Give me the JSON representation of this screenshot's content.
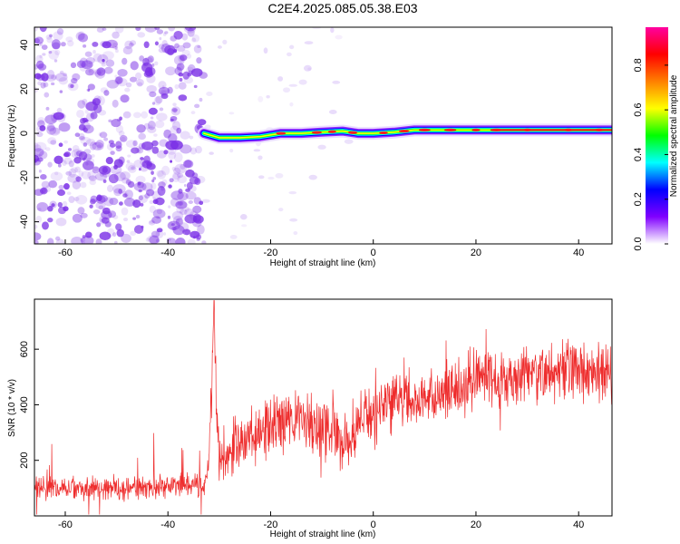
{
  "title": "C2E4.2025.085.05.38.E03",
  "colors": {
    "line": "#ee2d2d",
    "frame": "#000000",
    "spectrogram_noise": "#7a2fe6",
    "colormap": [
      "#ffffff",
      "#8000ff",
      "#0000ff",
      "#00ffff",
      "#00ff00",
      "#ffff00",
      "#ff8000",
      "#ff0000",
      "#ff00a0"
    ]
  },
  "chart_data": [
    {
      "type": "heatmap",
      "xlabel": "Height of straight line (km)",
      "ylabel": "Frequency (Hz)",
      "xlim": [
        -66,
        46.5
      ],
      "ylim": [
        -50,
        48
      ],
      "xticks": [
        -60,
        -40,
        -20,
        0,
        20,
        40
      ],
      "xtick_labels": [
        "-60",
        "-40",
        "-20",
        "0",
        "20",
        "40"
      ],
      "yticks": [
        -40,
        -20,
        0,
        20,
        40
      ],
      "ytick_labels": [
        "-40",
        "-20",
        "0",
        "20",
        "40"
      ],
      "colorbar": {
        "label": "Normalized spectral amplitude",
        "range": [
          0,
          0.97
        ],
        "ticks": [
          0.0,
          0.2,
          0.4,
          0.6,
          0.8
        ],
        "tick_labels": [
          "0.0",
          "0.2",
          "0.4",
          "0.6",
          "0.8"
        ]
      },
      "noise_region_x": [
        -66,
        -33
      ],
      "signal_ridge": [
        {
          "x": -33,
          "f": 0.0
        },
        {
          "x": -30,
          "f": -2.0
        },
        {
          "x": -26,
          "f": -2.0
        },
        {
          "x": -22,
          "f": -1.5
        },
        {
          "x": -18,
          "f": 0.0
        },
        {
          "x": -14,
          "f": 0.0
        },
        {
          "x": -10,
          "f": 0.5
        },
        {
          "x": -6,
          "f": 1.0
        },
        {
          "x": -3,
          "f": 0.0
        },
        {
          "x": 0,
          "f": 0.0
        },
        {
          "x": 4,
          "f": 0.5
        },
        {
          "x": 8,
          "f": 1.5
        },
        {
          "x": 12,
          "f": 1.5
        },
        {
          "x": 18,
          "f": 1.5
        },
        {
          "x": 25,
          "f": 1.5
        },
        {
          "x": 35,
          "f": 1.5
        },
        {
          "x": 46.5,
          "f": 1.5
        }
      ]
    },
    {
      "type": "line",
      "xlabel": "Height of straight line (km)",
      "ylabel": "SNR (10 * v/v)",
      "xlim": [
        -66,
        46.5
      ],
      "ylim": [
        0,
        780
      ],
      "xticks": [
        -60,
        -40,
        -20,
        0,
        20,
        40
      ],
      "xtick_labels": [
        "-60",
        "-40",
        "-20",
        "0",
        "20",
        "40"
      ],
      "yticks": [
        200,
        400,
        600
      ],
      "ytick_labels": [
        "200",
        "400",
        "600"
      ],
      "series": [
        {
          "x": [
            -66,
            -60,
            -55,
            -50,
            -45,
            -40,
            -36,
            -33,
            -32,
            -31.5,
            -31,
            -30.5,
            -30,
            -28,
            -25,
            -22,
            -20,
            -18,
            -15,
            -12,
            -10,
            -8,
            -6,
            -4,
            -2,
            0,
            2,
            4,
            6,
            8,
            10,
            12,
            15,
            18,
            20,
            22,
            25,
            28,
            30,
            33,
            36,
            38,
            40,
            42,
            44,
            46.5
          ],
          "y": [
            100,
            100,
            105,
            100,
            105,
            110,
            110,
            110,
            200,
            420,
            780,
            350,
            200,
            240,
            280,
            300,
            340,
            320,
            350,
            330,
            290,
            340,
            250,
            310,
            360,
            360,
            420,
            410,
            440,
            410,
            440,
            420,
            450,
            470,
            500,
            500,
            500,
            510,
            520,
            520,
            520,
            520,
            530,
            520,
            510,
            510
          ]
        }
      ]
    }
  ]
}
